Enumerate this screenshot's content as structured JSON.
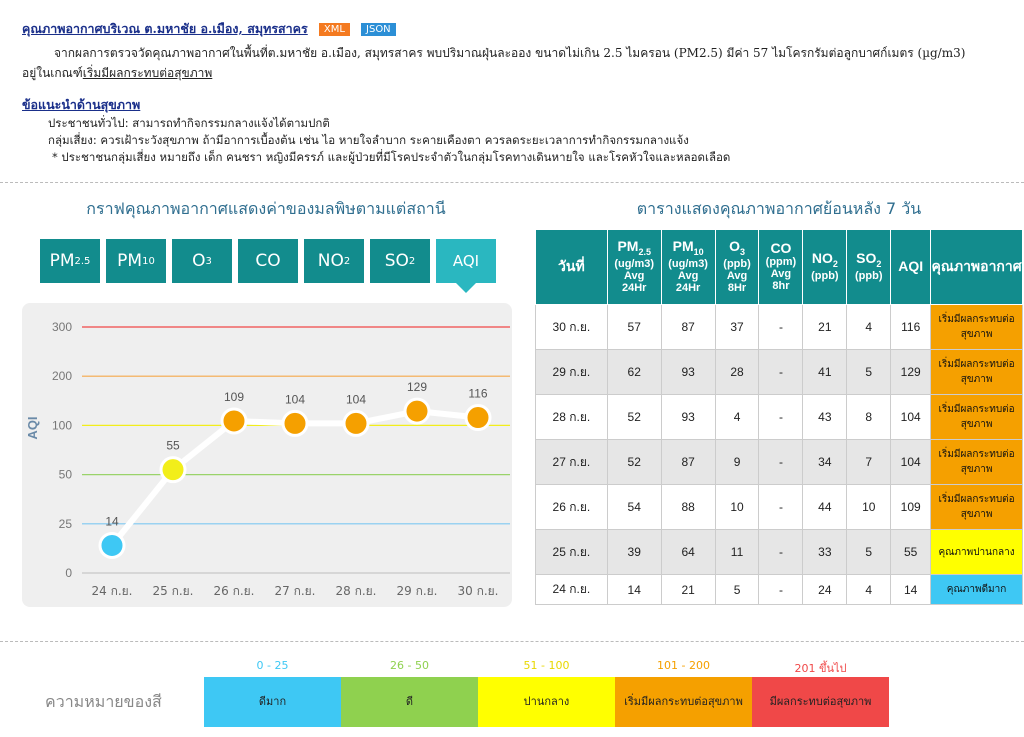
{
  "header": {
    "title": "คุณภาพอากาศบริเวณ ต.มหาชัย อ.เมือง, สมุทรสาคร",
    "xml_label": "XML",
    "json_label": "JSON",
    "summary_text": "จากผลการตรวจวัดคุณภาพอากาศในพื้นที่ต.มหาชัย อ.เมือง, สมุทรสาคร พบปริมาณฝุ่นละออง ขนาดไม่เกิน 2.5 ไมครอน (PM2.5) มีค่า 57 ไมโครกรัมต่อลูกบาศก์เมตร (µg/m3)",
    "summary_level_prefix": "อยู่ในเกณฑ์",
    "summary_level": "เริ่มมีผลกระทบต่อสุขภาพ"
  },
  "advice": {
    "title": "ข้อแนะนำด้านสุขภาพ",
    "general": "ประชาชนทั่วไป: สามารถทำกิจกรรมกลางแจ้งได้ตามปกติ",
    "risk": "กลุ่มเสี่ยง: ควรเฝ้าระวังสุขภาพ ถ้ามีอาการเบื้องต้น เช่น ไอ หายใจลำบาก ระคายเคืองตา ควรลดระยะเวลาการทำกิจกรรมกลางแจ้ง",
    "note": "* ประชาชนกลุ่มเสี่ยง หมายถึง เด็ก คนชรา หญิงมีครรภ์ และผู้ป่วยที่มีโรคประจำตัวในกลุ่มโรคทางเดินหายใจ และโรคหัวใจและหลอดเลือด"
  },
  "chart": {
    "title": "กราฟคุณภาพอากาศแสดงค่าของมลพิษตามแต่สถานี",
    "tabs": [
      {
        "main": "PM",
        "sub": "2.5"
      },
      {
        "main": "PM",
        "sub": "10"
      },
      {
        "main": "O",
        "sub": "3"
      },
      {
        "main": "CO",
        "sub": ""
      },
      {
        "main": "NO",
        "sub": "2"
      },
      {
        "main": "SO",
        "sub": "2"
      },
      {
        "main": "AQI",
        "sub": ""
      }
    ],
    "active_tab": "AQI"
  },
  "chart_data": {
    "type": "line",
    "title": "",
    "xlabel": "",
    "ylabel": "AQI",
    "categories": [
      "24 ก.ย.",
      "25 ก.ย.",
      "26 ก.ย.",
      "27 ก.ย.",
      "28 ก.ย.",
      "29 ก.ย.",
      "30 ก.ย."
    ],
    "series": [
      {
        "values": [
          14,
          55,
          109,
          104,
          104,
          129,
          116
        ]
      }
    ],
    "point_colors": [
      "#3ec8f4",
      "#f2ee1a",
      "#f5a000",
      "#f5a000",
      "#f5a000",
      "#f5a000",
      "#f5a000"
    ],
    "yticks": [
      0,
      25,
      50,
      100,
      200,
      300
    ],
    "threshold_lines": [
      {
        "value": 25,
        "color": "#7fc8f2"
      },
      {
        "value": 50,
        "color": "#9ad36a"
      },
      {
        "value": 100,
        "color": "#f2ee1a"
      },
      {
        "value": 200,
        "color": "#f5a94a"
      },
      {
        "value": 300,
        "color": "#f04848"
      }
    ],
    "grid": false
  },
  "table": {
    "title": "ตารางแสดงคุณภาพอากาศย้อนหลัง 7 วัน",
    "headers": {
      "date": "วันที่",
      "pm25_main": "PM",
      "pm25_sub": "2.5",
      "pm25_unit": "(ug/m3)",
      "pm25_avg": "Avg",
      "pm25_hr": "24Hr",
      "pm10_main": "PM",
      "pm10_sub": "10",
      "pm10_unit": "(ug/m3)",
      "pm10_avg": "Avg",
      "pm10_hr": "24Hr",
      "o3_main": "O",
      "o3_sub": "3",
      "o3_unit": "(ppb)",
      "o3_avg": "Avg",
      "o3_hr": "8Hr",
      "co_main": "CO",
      "co_unit": "(ppm)",
      "co_avg": "Avg",
      "co_hr": "8hr",
      "no2_main": "NO",
      "no2_sub": "2",
      "no2_unit": "(ppb)",
      "so2_main": "SO",
      "so2_sub": "2",
      "so2_unit": "(ppb)",
      "aqi": "AQI",
      "quality": "คุณภาพอากาศ"
    },
    "rows": [
      {
        "date": "30 ก.ย.",
        "pm25": "57",
        "pm10": "87",
        "o3": "37",
        "co": "-",
        "no2": "21",
        "so2": "4",
        "aqi": "116",
        "quality": "เริ่มมีผลกระทบต่อสุขภาพ",
        "color": "#f5a000"
      },
      {
        "date": "29 ก.ย.",
        "pm25": "62",
        "pm10": "93",
        "o3": "28",
        "co": "-",
        "no2": "41",
        "so2": "5",
        "aqi": "129",
        "quality": "เริ่มมีผลกระทบต่อสุขภาพ",
        "color": "#f5a000"
      },
      {
        "date": "28 ก.ย.",
        "pm25": "52",
        "pm10": "93",
        "o3": "4",
        "co": "-",
        "no2": "43",
        "so2": "8",
        "aqi": "104",
        "quality": "เริ่มมีผลกระทบต่อสุขภาพ",
        "color": "#f5a000"
      },
      {
        "date": "27 ก.ย.",
        "pm25": "52",
        "pm10": "87",
        "o3": "9",
        "co": "-",
        "no2": "34",
        "so2": "7",
        "aqi": "104",
        "quality": "เริ่มมีผลกระทบต่อสุขภาพ",
        "color": "#f5a000"
      },
      {
        "date": "26 ก.ย.",
        "pm25": "54",
        "pm10": "88",
        "o3": "10",
        "co": "-",
        "no2": "44",
        "so2": "10",
        "aqi": "109",
        "quality": "เริ่มมีผลกระทบต่อสุขภาพ",
        "color": "#f5a000"
      },
      {
        "date": "25 ก.ย.",
        "pm25": "39",
        "pm10": "64",
        "o3": "11",
        "co": "-",
        "no2": "33",
        "so2": "5",
        "aqi": "55",
        "quality": "คุณภาพปานกลาง",
        "color": "#ffff00"
      },
      {
        "date": "24 ก.ย.",
        "pm25": "14",
        "pm10": "21",
        "o3": "5",
        "co": "-",
        "no2": "24",
        "so2": "4",
        "aqi": "14",
        "quality": "คุณภาพดีมาก",
        "color": "#3ec8f4"
      }
    ]
  },
  "legend": {
    "label": "ความหมายของสี",
    "items": [
      {
        "range": "0 - 25",
        "text": "ดีมาก",
        "color": "#3ec8f4",
        "range_color": "#3ec8f4"
      },
      {
        "range": "26 - 50",
        "text": "ดี",
        "color": "#8fd14f",
        "range_color": "#8fd14f"
      },
      {
        "range": "51 - 100",
        "text": "ปานกลาง",
        "color": "#ffff00",
        "range_color": "#e8d800"
      },
      {
        "range": "101 - 200",
        "text": "เริ่มมีผลกระทบต่อสุขภาพ",
        "color": "#f5a000",
        "range_color": "#f5a000"
      },
      {
        "range": "201 ขึ้นไป",
        "text": "มีผลกระทบต่อสุขภาพ",
        "color": "#f04848",
        "range_color": "#f04848"
      }
    ]
  }
}
